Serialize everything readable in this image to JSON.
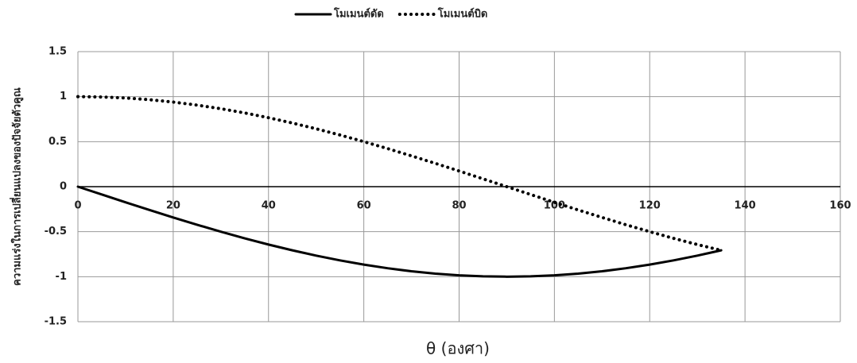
{
  "chart_data": {
    "type": "line",
    "x_label": "θ (องศา)",
    "y_label": "ความแร่งในการเปลี่ยนแปลงของปัจจัยตัวคูณ",
    "x": [
      0,
      5,
      10,
      15,
      20,
      25,
      30,
      35,
      40,
      45,
      50,
      55,
      60,
      65,
      70,
      75,
      80,
      85,
      90,
      95,
      100,
      105,
      110,
      115,
      120,
      125,
      130,
      135
    ],
    "series": [
      {
        "name": "โมเมนต์ดัด",
        "color": "#000000",
        "line_style": "solid",
        "values": [
          0,
          -0.087,
          -0.174,
          -0.259,
          -0.342,
          -0.423,
          -0.5,
          -0.574,
          -0.643,
          -0.707,
          -0.766,
          -0.819,
          -0.866,
          -0.906,
          -0.94,
          -0.966,
          -0.985,
          -0.996,
          -1,
          -0.996,
          -0.985,
          -0.966,
          -0.94,
          -0.906,
          -0.866,
          -0.819,
          -0.766,
          -0.707
        ]
      },
      {
        "name": "โมเมนต์บิด",
        "color": "#000000",
        "line_style": "dotted",
        "values": [
          1,
          0.996,
          0.985,
          0.966,
          0.94,
          0.906,
          0.866,
          0.819,
          0.766,
          0.707,
          0.643,
          0.574,
          0.5,
          0.423,
          0.342,
          0.259,
          0.174,
          0.087,
          0,
          -0.087,
          -0.174,
          -0.259,
          -0.342,
          -0.423,
          -0.5,
          -0.574,
          -0.643,
          -0.707
        ]
      }
    ],
    "xlim": [
      0,
      160
    ],
    "xticks": [
      0,
      20,
      40,
      60,
      80,
      100,
      120,
      140,
      160
    ],
    "ylim": [
      -1.5,
      1.5
    ],
    "yticks": [
      -1.5,
      -1,
      -0.5,
      0,
      0.5,
      1,
      1.5
    ],
    "grid": true,
    "legend": "top"
  }
}
